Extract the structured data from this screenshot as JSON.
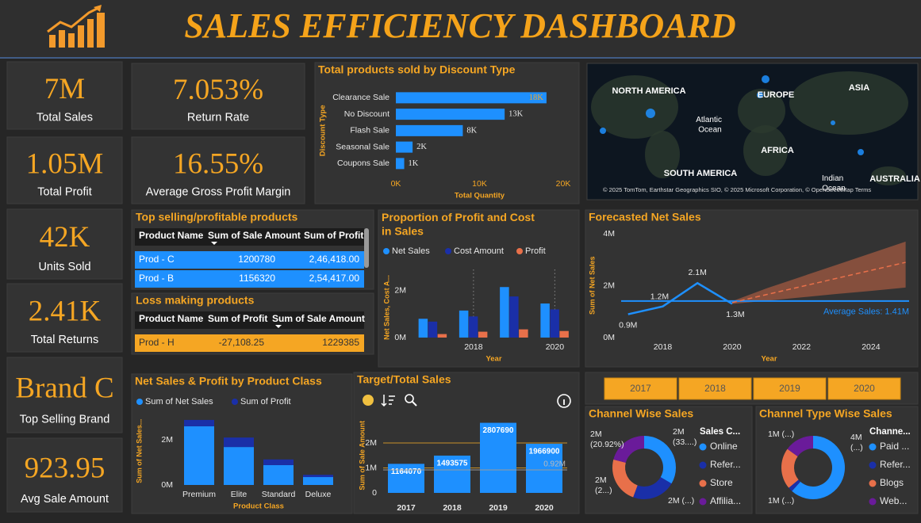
{
  "header": {
    "title": "SALES EFFICIENCY DASHBOARD"
  },
  "kpis": [
    {
      "value": "7M",
      "label": "Total Sales"
    },
    {
      "value": "1.05M",
      "label": "Total Profit"
    },
    {
      "value": "42K",
      "label": "Units Sold"
    },
    {
      "value": "2.41K",
      "label": "Total Returns"
    },
    {
      "value": "Brand C",
      "label": "Top Selling Brand"
    },
    {
      "value": "923.95",
      "label": "Avg Sale Amount"
    },
    {
      "value": "7.053%",
      "label": "Return Rate"
    },
    {
      "value": "16.55%",
      "label": "Average Gross Profit Margin"
    }
  ],
  "tables": {
    "top_selling": {
      "title": "Top selling/profitable products",
      "columns": [
        "Product Name",
        "Sum of Sale Amount",
        "Sum of Profit"
      ],
      "rows": [
        [
          "Prod - C",
          "1200780",
          "2,46,418.00"
        ],
        [
          "Prod - B",
          "1156320",
          "2,54,417.00"
        ]
      ]
    },
    "loss_making": {
      "title": "Loss making products",
      "columns": [
        "Product Name",
        "Sum of Profit",
        "Sum of Sale Amount"
      ],
      "rows": [
        [
          "Prod - H",
          "-27,108.25",
          "1229385"
        ]
      ]
    }
  },
  "map": {
    "labels": [
      "NORTH AMERICA",
      "EUROPE",
      "ASIA",
      "Atlantic Ocean",
      "AFRICA",
      "SOUTH AMERICA",
      "Indian Ocean",
      "AUSTRALIA"
    ],
    "attribution": "© 2025 TomTom, Earthstar Geographics SIO, © 2025 Microsoft Corporation, © OpenStreetMap Terms"
  },
  "year_slicer": [
    "2017",
    "2018",
    "2019",
    "2020"
  ],
  "chart_data": [
    {
      "type": "hbar",
      "title": "Total products sold by Discount Type",
      "categories": [
        "Clearance Sale",
        "No Discount",
        "Flash Sale",
        "Seasonal Sale",
        "Coupons Sale"
      ],
      "values": [
        18000,
        13000,
        8000,
        2000,
        1000
      ],
      "value_labels": [
        "18K",
        "13K",
        "8K",
        "2K",
        "1K"
      ],
      "color": "#1e90ff",
      "xlim": [
        0,
        20000
      ],
      "xticks": [
        {
          "value": 0,
          "label": "0K"
        },
        {
          "value": 10000,
          "label": "10K"
        },
        {
          "value": 20000,
          "label": "20K"
        }
      ],
      "x_label": "Total Quantity",
      "y_label": "Discount Type"
    },
    {
      "type": "grouped_bar",
      "title": "Proportion of Profit and Cost in Sales",
      "categories": [
        null,
        "2018",
        null,
        "2020"
      ],
      "series": [
        {
          "name": "Net Sales",
          "color": "#1e90ff",
          "values": [
            0.8,
            1.15,
            2.15,
            1.45
          ]
        },
        {
          "name": "Cost Amount",
          "color": "#1a2fa8",
          "values": [
            0.68,
            0.9,
            1.75,
            1.2
          ]
        },
        {
          "name": "Profit",
          "color": "#e8704a",
          "values": [
            0.15,
            0.25,
            0.35,
            0.28
          ]
        }
      ],
      "ylim": [
        0,
        2.9
      ],
      "yticks": [
        {
          "value": 0,
          "label": "0M"
        },
        {
          "value": 2,
          "label": "2M"
        }
      ],
      "x_label": "Year",
      "y_label": "Net Sales, Cost A..."
    },
    {
      "type": "line",
      "title": "Forecasted Net Sales",
      "series": [
        {
          "color": "#1e90ff",
          "x": [
            2017,
            2018,
            2019,
            2020
          ],
          "values": [
            0.9,
            1.2,
            2.1,
            1.3
          ],
          "value_labels": [
            "0.9M",
            "1.2M",
            "2.1M",
            "1.3M"
          ]
        },
        {
          "color": "#e8704a",
          "style": "dashed",
          "x": [
            2020,
            2021,
            2022,
            2023,
            2024,
            2025
          ],
          "values": [
            1.35,
            1.66,
            1.97,
            2.28,
            2.59,
            2.9
          ],
          "lower": [
            1.3,
            1.42,
            1.55,
            1.68,
            1.8,
            1.93
          ],
          "upper": [
            1.4,
            1.9,
            2.35,
            2.8,
            3.25,
            3.7
          ]
        }
      ],
      "average_line": {
        "value": 1.41,
        "label": "Average Sales: 1.41M",
        "color": "#1e90ff"
      },
      "xlim": [
        2016.8,
        2025.1
      ],
      "xticks": [
        2018,
        2020,
        2022,
        2024
      ],
      "ylim": [
        0,
        4.2
      ],
      "yticks": [
        {
          "value": 0,
          "label": "0M"
        },
        {
          "value": 2,
          "label": "2M"
        },
        {
          "value": 4,
          "label": "4M"
        }
      ],
      "x_label": "Year",
      "y_label": "Sum of Net Sales"
    },
    {
      "type": "stacked_bar",
      "title": "Net Sales & Profit by Product Class",
      "categories": [
        "Premium",
        "Elite",
        "Standard",
        "Deluxe"
      ],
      "series": [
        {
          "name": "Sum of Net Sales",
          "color": "#1e90ff",
          "values": [
            2.6,
            1.68,
            0.88,
            0.35
          ]
        },
        {
          "name": "Sum of Profit",
          "color": "#1a2fa8",
          "values": [
            0.28,
            0.42,
            0.25,
            0.1
          ]
        }
      ],
      "ylim": [
        0,
        3
      ],
      "yticks": [
        {
          "value": 0,
          "label": "0M"
        },
        {
          "value": 2,
          "label": "2M"
        }
      ],
      "x_label": "Product Class",
      "y_label": "Sum of Net Sales..."
    },
    {
      "type": "bar",
      "title": "Target/Total Sales",
      "categories": [
        "2017",
        "2018",
        "2019",
        "2020"
      ],
      "values": [
        1164070,
        1493575,
        2807690,
        1966900
      ],
      "color": "#1e90ff",
      "target_line": {
        "value": 920000,
        "label": "0.92M"
      },
      "ylim": [
        0,
        3000000
      ],
      "yticks": [
        0,
        {
          "value": 1000000,
          "label": "1M"
        },
        {
          "value": 2000000,
          "label": "2M"
        }
      ],
      "grid": true,
      "grid_color": "#c8922a",
      "y_label": "Sum of Sale Amount"
    },
    {
      "type": "donut",
      "title": "Channel Wise Sales",
      "legend_title": "Sales C...",
      "categories": [
        "Online",
        "Refer...",
        "Store",
        "Affilia..."
      ],
      "colors": [
        "#1e90ff",
        "#1a2fa8",
        "#e8704a",
        "#6a1b9a"
      ],
      "values": [
        2.44,
        1.62,
        1.71,
        1.527
      ],
      "value_labels": [
        "2M (33....)",
        "2M (...)",
        "2M (2...)",
        "2M (20.92%)"
      ]
    },
    {
      "type": "donut",
      "title": "Channel Type Wise Sales",
      "legend_title": "Channe...",
      "categories": [
        "Paid ...",
        "Refer...",
        "Blogs",
        "Web..."
      ],
      "colors": [
        "#1e90ff",
        "#1a2fa8",
        "#e8704a",
        "#6a1b9a"
      ],
      "values": [
        4.1,
        0.15,
        1.4,
        1.0
      ],
      "value_labels": [
        "4M (...)",
        null,
        "1M (...)",
        "1M (...)"
      ]
    }
  ]
}
